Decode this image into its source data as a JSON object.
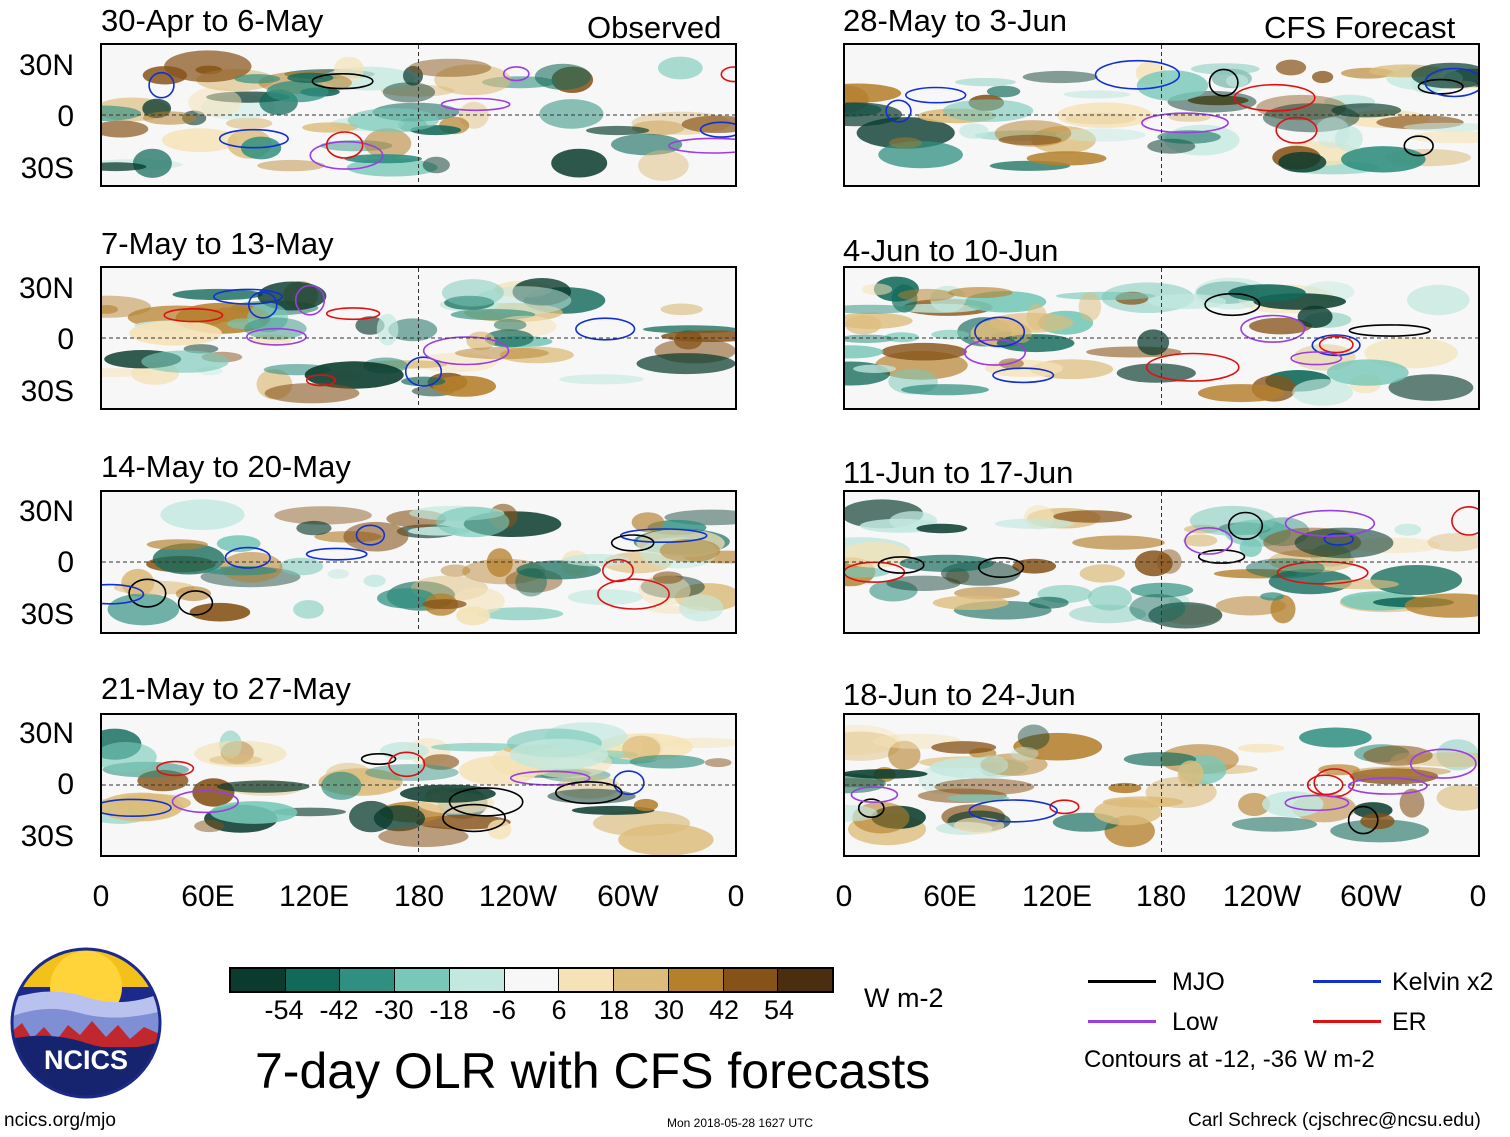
{
  "panels": [
    {
      "title": "30-Apr to 6-May",
      "tag": "Observed"
    },
    {
      "title": "28-May to 3-Jun",
      "tag": "CFS Forecast"
    },
    {
      "title": "7-May to 13-May",
      "tag": ""
    },
    {
      "title": "4-Jun to 10-Jun",
      "tag": ""
    },
    {
      "title": "14-May to 20-May",
      "tag": ""
    },
    {
      "title": "11-Jun to 17-Jun",
      "tag": ""
    },
    {
      "title": "21-May to 27-May",
      "tag": ""
    },
    {
      "title": "18-Jun to 24-Jun",
      "tag": ""
    }
  ],
  "lat_labels": [
    "30N",
    "0",
    "30S"
  ],
  "lon_labels": [
    "0",
    "60E",
    "120E",
    "180",
    "120W",
    "60W",
    "0"
  ],
  "colorbar": {
    "ticks": [
      "-54",
      "-42",
      "-30",
      "-18",
      "-6",
      "6",
      "18",
      "30",
      "42",
      "54"
    ],
    "colors": [
      "#0a3b2e",
      "#11695a",
      "#2f8f80",
      "#77c8b8",
      "#c2e8df",
      "#f7f7f7",
      "#f5e2b6",
      "#dcbc7b",
      "#b5802c",
      "#865217",
      "#4b2d0f"
    ],
    "units": "W m-2"
  },
  "title": "7-day OLR with CFS forecasts",
  "legend": {
    "items": [
      {
        "label": "MJO",
        "color": "#000000"
      },
      {
        "label": "Kelvin x2",
        "color": "#1030d0"
      },
      {
        "label": "Low",
        "color": "#9b3de0"
      },
      {
        "label": "ER",
        "color": "#e01010"
      }
    ],
    "note": "Contours at -12, -36 W m-2"
  },
  "logo_text": "NCICS",
  "footer": {
    "left": "ncics.org/mjo",
    "center": "Mon 2018-05-28 1627 UTC",
    "right": "Carl Schreck (cjschrec@ncsu.edu)"
  }
}
